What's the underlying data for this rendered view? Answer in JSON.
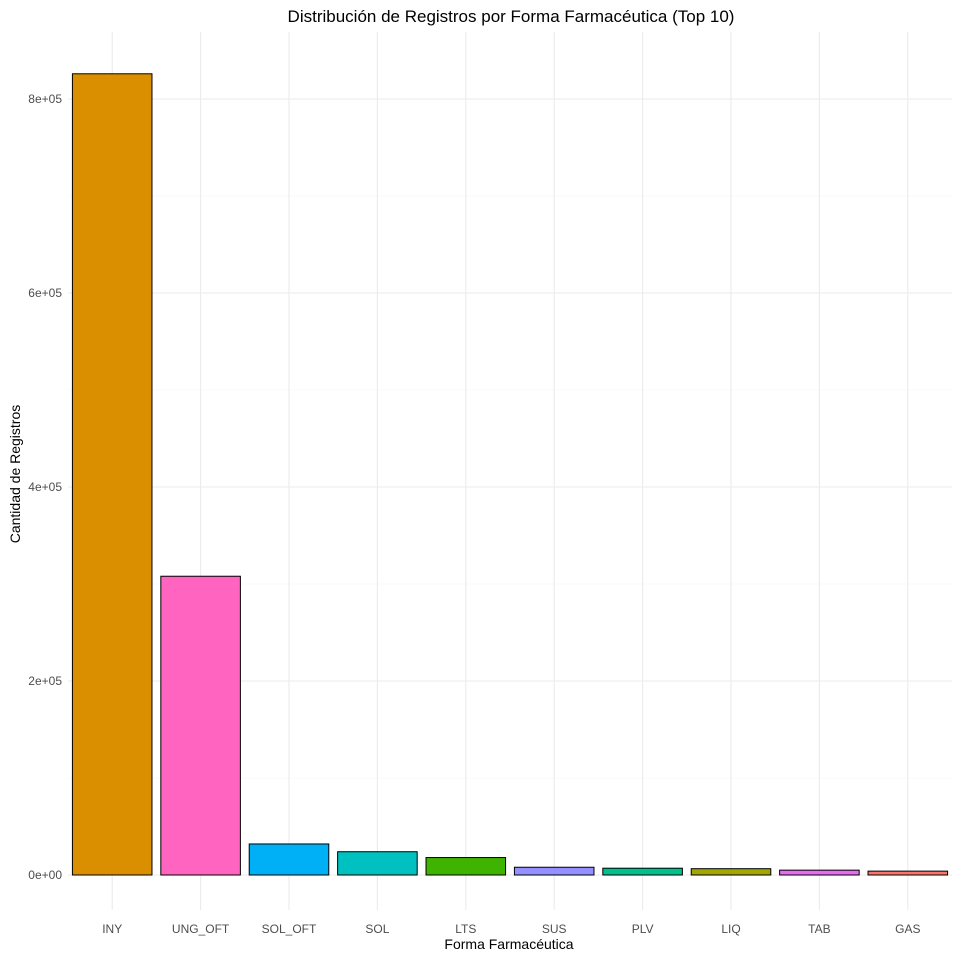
{
  "chart_data": {
    "type": "bar",
    "title": "Distribución de Registros por Forma Farmacéutica (Top 10)",
    "xlabel": "Forma Farmacéutica",
    "ylabel": "Cantidad de Registros",
    "categories": [
      "INY",
      "UNG_OFT",
      "SOL_OFT",
      "SOL",
      "LTS",
      "SUS",
      "PLV",
      "LIQ",
      "TAB",
      "GAS"
    ],
    "values": [
      826000,
      308000,
      32000,
      24000,
      18000,
      8000,
      7000,
      6500,
      5000,
      4000
    ],
    "colors": [
      "#D98F00",
      "#FF64C0",
      "#00B0F6",
      "#00C0C0",
      "#3FB400",
      "#9590FF",
      "#00C08B",
      "#A3A500",
      "#E76BF3",
      "#F8766D"
    ],
    "ylim": [
      0,
      860000
    ],
    "y_ticks": [
      0,
      200000,
      400000,
      600000,
      800000
    ],
    "y_tick_labels": [
      "0e+00",
      "2e+05",
      "4e+05",
      "6e+05",
      "8e+05"
    ],
    "y_minor_ticks": [
      100000,
      300000,
      500000,
      700000
    ],
    "grid": true,
    "legend": "none"
  }
}
